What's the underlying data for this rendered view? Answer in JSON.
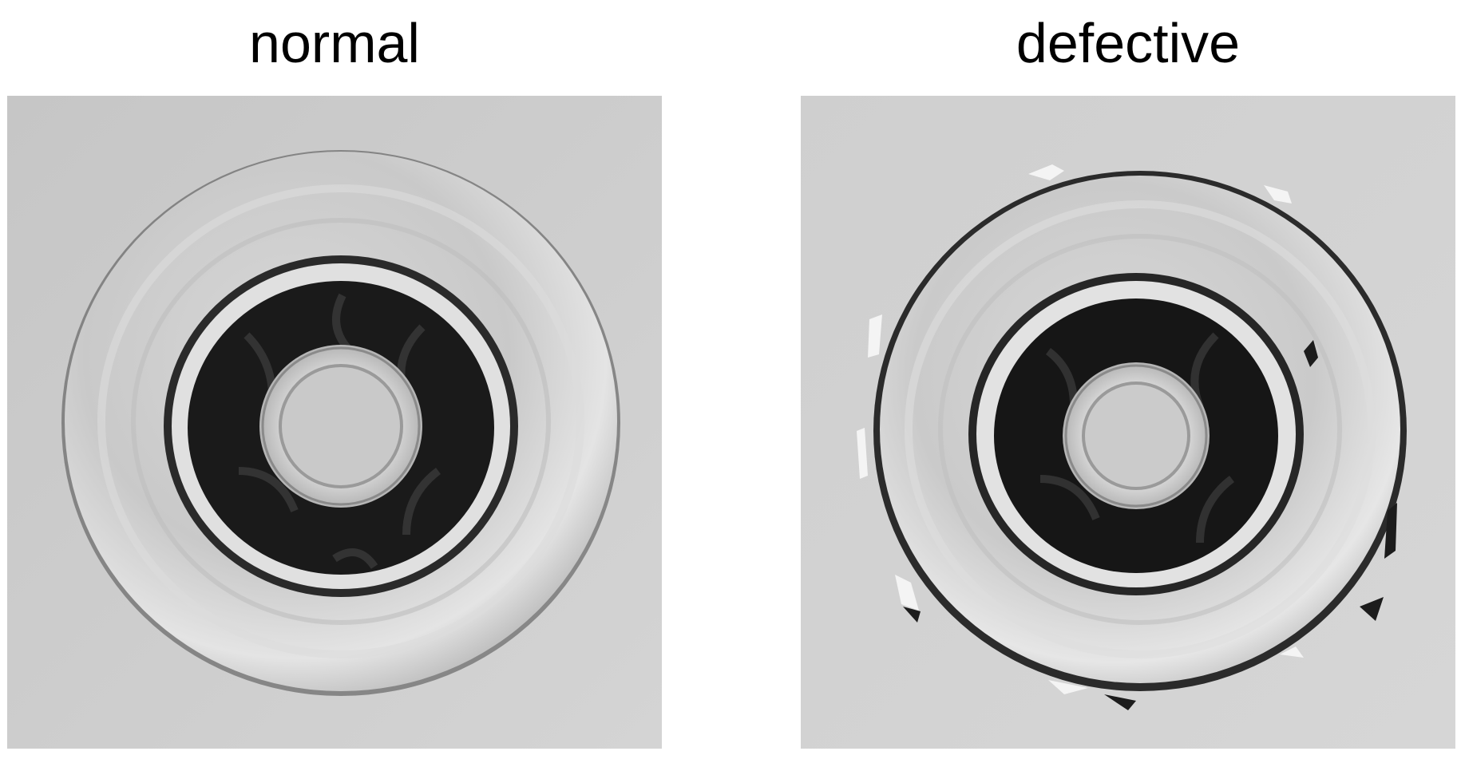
{
  "panels": [
    {
      "label": "normal"
    },
    {
      "label": "defective"
    }
  ],
  "colors": {
    "background": "#cdcdcd",
    "metal_light": "#e2e2e2",
    "metal_mid": "#bdbdbd",
    "cavity_dark": "#1b1b1b"
  }
}
